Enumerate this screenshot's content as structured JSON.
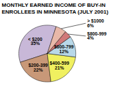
{
  "chart_data": {
    "type": "pie",
    "title": "MONTHLY EARNED INCOME OF BUY-IN\nENROLLEES IN MINNESOTA (JULY 2001)",
    "categories": [
      "< $200",
      "$200-399",
      "$400-599",
      "$600-799",
      "$800-999",
      "> $1000"
    ],
    "values": [
      35,
      22,
      21,
      12,
      4,
      6
    ],
    "value_labels": [
      "35%",
      "22%",
      "21%",
      "12%",
      "4%",
      "6%"
    ],
    "colors": [
      "#c8b8d8",
      "#c89878",
      "#f0f060",
      "#b8d8e8",
      "#d07878",
      "#e8b8a8"
    ],
    "data_labels": true
  }
}
